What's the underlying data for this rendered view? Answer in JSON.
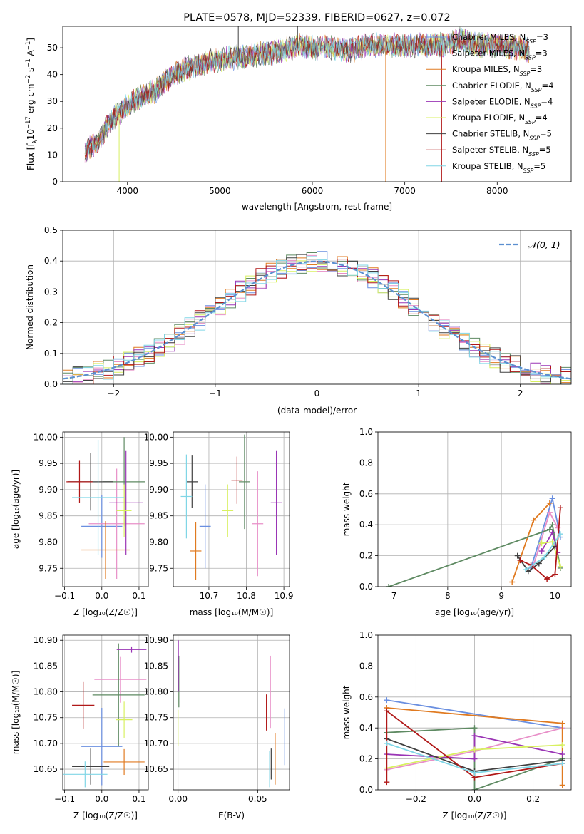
{
  "colors": {
    "Chabrier MILES": "#6a8fe0",
    "Salpeter MILES": "#e88fc8",
    "Kroupa MILES": "#e07a20",
    "Chabrier ELODIE": "#5e8a62",
    "Salpeter ELODIE": "#9a35b5",
    "Kroupa ELODIE": "#d8f060",
    "Chabrier STELIB": "#404040",
    "Salpeter STELIB": "#b01818",
    "Kroupa STELIB": "#80d6e6",
    "gauss": "#5b8fd0"
  },
  "chart_data": [
    {
      "id": "spectrum",
      "type": "line",
      "title": "PLATE=0578, MJD=52339, FIBERID=0627, z=0.072",
      "xlabel": "wavelength [Angstrom, rest frame]",
      "ylabel_parts": [
        "Flux [f",
        "λ",
        "10",
        "−17",
        " erg cm",
        "−2",
        " s",
        "−1",
        " A",
        "−1",
        "]"
      ],
      "xlim": [
        3300,
        8800
      ],
      "ylim": [
        0,
        58
      ],
      "xticks": [
        4000,
        5000,
        6000,
        7000,
        8000
      ],
      "yticks": [
        0,
        10,
        20,
        30,
        40,
        50
      ],
      "grid": false,
      "legend_position": "top-right",
      "continuum": [
        [
          3540,
          11
        ],
        [
          3700,
          16
        ],
        [
          3800,
          22
        ],
        [
          3950,
          27
        ],
        [
          4100,
          31
        ],
        [
          4300,
          34
        ],
        [
          4500,
          40
        ],
        [
          4700,
          43
        ],
        [
          4900,
          45
        ],
        [
          5100,
          46
        ],
        [
          5300,
          47
        ],
        [
          5500,
          48
        ],
        [
          5700,
          49
        ],
        [
          5850,
          51
        ],
        [
          6000,
          50
        ],
        [
          6200,
          50
        ],
        [
          6400,
          49
        ],
        [
          6600,
          51
        ],
        [
          6800,
          51
        ],
        [
          7000,
          51
        ],
        [
          7200,
          51
        ],
        [
          7400,
          51
        ],
        [
          7600,
          53
        ],
        [
          7800,
          51
        ],
        [
          8000,
          51
        ],
        [
          8200,
          50
        ],
        [
          8350,
          49
        ]
      ],
      "spikes": [
        [
          5199,
          58
        ],
        [
          5840,
          58
        ],
        [
          6794,
          0
        ],
        [
          7399,
          0
        ],
        [
          3910,
          0
        ]
      ],
      "series": [
        {
          "name": "Chabrier MILES",
          "nssp": "3"
        },
        {
          "name": "Salpeter MILES",
          "nssp": "3"
        },
        {
          "name": "Kroupa MILES",
          "nssp": "3"
        },
        {
          "name": "Chabrier ELODIE",
          "nssp": "4"
        },
        {
          "name": "Salpeter ELODIE",
          "nssp": "4"
        },
        {
          "name": "Kroupa ELODIE",
          "nssp": "4"
        },
        {
          "name": "Chabrier STELIB",
          "nssp": "5"
        },
        {
          "name": "Salpeter STELIB",
          "nssp": "5"
        },
        {
          "name": "Kroupa STELIB",
          "nssp": "5"
        }
      ],
      "legend_prefix": ", N",
      "legend_sub": "SSP",
      "legend_eq": "="
    },
    {
      "id": "residuals",
      "type": "line",
      "xlabel": "(data-model)/error",
      "ylabel": "Normed distribution",
      "xlim": [
        -2.5,
        2.5
      ],
      "ylim": [
        0,
        0.5
      ],
      "xticks": [
        -2,
        -1,
        0,
        1,
        2
      ],
      "yticks": [
        0.0,
        0.1,
        0.2,
        0.3,
        0.4,
        0.5
      ],
      "grid": true,
      "legend_position": "top-right",
      "legend": "𝒩(0, 1)",
      "bin_width": 0.1
    },
    {
      "id": "age_vs_Z",
      "type": "scatter",
      "xlabel": "Z [log₁₀(Z/Z☉)]",
      "ylabel": "age  [log₁₀(age/yr)]",
      "xlim": [
        -0.105,
        0.125
      ],
      "ylim": [
        9.715,
        10.01
      ],
      "xticks": [
        -0.1,
        0.0,
        0.1
      ],
      "xticklabels": [
        "−0.1",
        "0.0",
        "0.1"
      ],
      "yticks": [
        9.75,
        9.8,
        9.85,
        9.9,
        9.95,
        10.0
      ],
      "grid": true,
      "points": [
        {
          "series": "Chabrier MILES",
          "x": 0.0,
          "xerr": 0.055,
          "y": 9.83,
          "yerr": 0.06
        },
        {
          "series": "Salpeter MILES",
          "x": 0.04,
          "xerr": 0.075,
          "y": 9.835,
          "yerr": 0.105
        },
        {
          "series": "Kroupa MILES",
          "x": 0.01,
          "xerr": 0.065,
          "y": 9.785,
          "yerr": 0.055
        },
        {
          "series": "Chabrier ELODIE",
          "x": 0.06,
          "xerr": 0.057,
          "y": 9.915,
          "yerr": 0.085
        },
        {
          "series": "Salpeter ELODIE",
          "x": 0.065,
          "xerr": 0.045,
          "y": 9.875,
          "yerr": 0.1
        },
        {
          "series": "Kroupa ELODIE",
          "x": 0.06,
          "xerr": 0.02,
          "y": 9.86,
          "yerr": 0.05
        },
        {
          "series": "Chabrier STELIB",
          "x": -0.03,
          "xerr": 0.06,
          "y": 9.915,
          "yerr": 0.055
        },
        {
          "series": "Salpeter STELIB",
          "x": -0.06,
          "xerr": 0.035,
          "y": 9.915,
          "yerr": 0.04
        },
        {
          "series": "Kroupa STELIB",
          "x": -0.01,
          "xerr": 0.07,
          "y": 9.885,
          "yerr": 0.11
        }
      ]
    },
    {
      "id": "age_vs_mass",
      "type": "scatter",
      "xlabel": "mass [log₁₀(M/M☉)]",
      "xlim": [
        10.605,
        10.915
      ],
      "ylim": [
        9.715,
        10.01
      ],
      "xticks": [
        10.7,
        10.8,
        10.9
      ],
      "yticks": [
        9.75,
        9.8,
        9.85,
        9.9,
        9.95,
        10.0
      ],
      "grid": true,
      "points": [
        {
          "series": "Chabrier MILES",
          "x": 10.69,
          "xerr": 0.015,
          "y": 9.83,
          "yerr": 0.08
        },
        {
          "series": "Salpeter MILES",
          "x": 10.83,
          "xerr": 0.015,
          "y": 9.835,
          "yerr": 0.1
        },
        {
          "series": "Kroupa MILES",
          "x": 10.665,
          "xerr": 0.015,
          "y": 9.783,
          "yerr": 0.055
        },
        {
          "series": "Chabrier ELODIE",
          "x": 10.795,
          "xerr": 0.015,
          "y": 9.915,
          "yerr": 0.09
        },
        {
          "series": "Salpeter ELODIE",
          "x": 10.88,
          "xerr": 0.015,
          "y": 9.875,
          "yerr": 0.1
        },
        {
          "series": "Kroupa ELODIE",
          "x": 10.75,
          "xerr": 0.015,
          "y": 9.86,
          "yerr": 0.05
        },
        {
          "series": "Chabrier STELIB",
          "x": 10.655,
          "xerr": 0.015,
          "y": 9.915,
          "yerr": 0.05
        },
        {
          "series": "Salpeter STELIB",
          "x": 10.775,
          "xerr": 0.015,
          "y": 9.918,
          "yerr": 0.045
        },
        {
          "series": "Kroupa STELIB",
          "x": 10.64,
          "xerr": 0.015,
          "y": 9.887,
          "yerr": 0.08
        }
      ]
    },
    {
      "id": "massweight_vs_age",
      "type": "line",
      "xlabel": "age  [log₁₀(age/yr)]",
      "ylabel": "mass weight",
      "xlim": [
        6.7,
        10.3
      ],
      "ylim": [
        0,
        1.0
      ],
      "xticks": [
        7,
        8,
        9,
        10
      ],
      "yticks": [
        0.0,
        0.2,
        0.4,
        0.6,
        0.8,
        1.0
      ],
      "grid": true,
      "series": [
        {
          "name": "Chabrier MILES",
          "points": [
            [
              9.55,
              0.12
            ],
            [
              9.95,
              0.57
            ],
            [
              10.1,
              0.32
            ]
          ]
        },
        {
          "name": "Salpeter MILES",
          "points": [
            [
              9.6,
              0.14
            ],
            [
              9.9,
              0.48
            ],
            [
              10.05,
              0.38
            ]
          ]
        },
        {
          "name": "Kroupa MILES",
          "points": [
            [
              9.2,
              0.03
            ],
            [
              9.6,
              0.43
            ],
            [
              9.9,
              0.54
            ]
          ]
        },
        {
          "name": "Chabrier ELODIE",
          "points": [
            [
              6.9,
              0.0
            ],
            [
              9.9,
              0.37
            ],
            [
              9.95,
              0.4
            ],
            [
              10.1,
              0.12
            ]
          ]
        },
        {
          "name": "Salpeter ELODIE",
          "points": [
            [
              9.75,
              0.23
            ],
            [
              9.95,
              0.35
            ],
            [
              10.05,
              0.22
            ]
          ]
        },
        {
          "name": "Kroupa ELODIE",
          "points": [
            [
              9.75,
              0.28
            ],
            [
              9.95,
              0.29
            ],
            [
              10.1,
              0.13
            ]
          ]
        },
        {
          "name": "Chabrier STELIB",
          "points": [
            [
              9.3,
              0.2
            ],
            [
              9.5,
              0.1
            ],
            [
              9.7,
              0.15
            ],
            [
              10.0,
              0.26
            ]
          ]
        },
        {
          "name": "Salpeter STELIB",
          "points": [
            [
              9.35,
              0.17
            ],
            [
              9.55,
              0.14
            ],
            [
              9.85,
              0.05
            ],
            [
              10.0,
              0.08
            ],
            [
              10.1,
              0.51
            ]
          ]
        },
        {
          "name": "Kroupa STELIB",
          "points": [
            [
              9.45,
              0.11
            ],
            [
              9.8,
              0.19
            ],
            [
              10.1,
              0.34
            ]
          ]
        }
      ]
    },
    {
      "id": "mass_vs_Z",
      "type": "scatter",
      "xlabel": "Z [log₁₀(Z/Z☉)]",
      "ylabel": "mass [log₁₀(M/M☉)]",
      "xlim": [
        -0.105,
        0.125
      ],
      "ylim": [
        10.61,
        10.91
      ],
      "xticks": [
        -0.1,
        0.0,
        0.1
      ],
      "xticklabels": [
        "−0.1",
        "0.0",
        "0.1"
      ],
      "yticks": [
        10.65,
        10.7,
        10.75,
        10.8,
        10.85,
        10.9
      ],
      "grid": true,
      "points": [
        {
          "series": "Chabrier MILES",
          "x": 0.0,
          "xerr": 0.055,
          "y": 10.694,
          "yerr": 0.075
        },
        {
          "series": "Salpeter MILES",
          "x": 0.05,
          "xerr": 0.07,
          "y": 10.824,
          "yerr": 0.045
        },
        {
          "series": "Kroupa MILES",
          "x": 0.06,
          "xerr": 0.055,
          "y": 10.664,
          "yerr": 0.025
        },
        {
          "series": "Chabrier ELODIE",
          "x": 0.045,
          "xerr": 0.07,
          "y": 10.794,
          "yerr": 0.1
        },
        {
          "series": "Salpeter ELODIE",
          "x": 0.08,
          "xerr": 0.04,
          "y": 10.882,
          "yerr": 0.006
        },
        {
          "series": "Kroupa ELODIE",
          "x": 0.06,
          "xerr": 0.022,
          "y": 10.746,
          "yerr": 0.035
        },
        {
          "series": "Chabrier STELIB",
          "x": -0.03,
          "xerr": 0.05,
          "y": 10.655,
          "yerr": 0.035
        },
        {
          "series": "Salpeter STELIB",
          "x": -0.05,
          "xerr": 0.03,
          "y": 10.774,
          "yerr": 0.045
        },
        {
          "series": "Kroupa STELIB",
          "x": -0.045,
          "xerr": 0.06,
          "y": 10.64,
          "yerr": 0.025
        }
      ]
    },
    {
      "id": "mass_vs_ebv",
      "type": "scatter",
      "xlabel": "E(B-V)",
      "xlim": [
        -0.003,
        0.07
      ],
      "ylim": [
        10.61,
        10.91
      ],
      "xticks": [
        0.0,
        0.05
      ],
      "xticklabels": [
        "0.00",
        "0.05"
      ],
      "yticks": [
        10.65,
        10.7,
        10.75,
        10.8,
        10.85,
        10.9
      ],
      "grid": true,
      "points": [
        {
          "series": "Chabrier MILES",
          "x": 0.067,
          "y": 10.713,
          "yerr": 0.055
        },
        {
          "series": "Salpeter MILES",
          "x": 0.058,
          "y": 10.8,
          "yerr": 0.07
        },
        {
          "series": "Kroupa MILES",
          "x": 0.061,
          "y": 10.67,
          "yerr": 0.05
        },
        {
          "series": "Chabrier ELODIE",
          "x": 0.0005,
          "y": 10.82,
          "yerr": 0.05
        },
        {
          "series": "Salpeter ELODIE",
          "x": 0.0002,
          "y": 10.85,
          "yerr": 0.05
        },
        {
          "series": "Kroupa ELODIE",
          "x": 0.0,
          "y": 10.73,
          "yerr": 0.035
        },
        {
          "series": "Chabrier STELIB",
          "x": 0.0585,
          "y": 10.66,
          "yerr": 0.03
        },
        {
          "series": "Salpeter STELIB",
          "x": 0.0555,
          "y": 10.76,
          "yerr": 0.035
        },
        {
          "series": "Kroupa STELIB",
          "x": 0.0575,
          "y": 10.65,
          "yerr": 0.035
        }
      ]
    },
    {
      "id": "massweight_vs_Z",
      "type": "line",
      "xlabel": "Z [log₁₀(Z/Z☉)]",
      "ylabel": "mass weight",
      "xlim": [
        -0.33,
        0.33
      ],
      "ylim": [
        0,
        1.0
      ],
      "xticks": [
        -0.2,
        0.0,
        0.2
      ],
      "xticklabels": [
        "−0.2",
        "0.0",
        "0.2"
      ],
      "yticks": [
        0.0,
        0.2,
        0.4,
        0.6,
        0.8,
        1.0
      ],
      "grid": true,
      "series": [
        {
          "name": "Chabrier MILES",
          "points": [
            [
              -0.3,
              0.58
            ],
            [
              0.3,
              0.4
            ]
          ]
        },
        {
          "name": "Salpeter MILES",
          "points": [
            [
              -0.3,
              0.13
            ],
            [
              0.0,
              0.25
            ],
            [
              0.3,
              0.4
            ]
          ]
        },
        {
          "name": "Kroupa MILES",
          "points": [
            [
              -0.3,
              0.53
            ],
            [
              0.3,
              0.43
            ],
            [
              0.3,
              0.03
            ]
          ]
        },
        {
          "name": "Chabrier ELODIE",
          "points": [
            [
              -0.3,
              0.37
            ],
            [
              0.0,
              0.4
            ],
            [
              0.0,
              0.0
            ],
            [
              0.3,
              0.2
            ]
          ]
        },
        {
          "name": "Salpeter ELODIE",
          "points": [
            [
              -0.3,
              0.23
            ],
            [
              0.0,
              0.2
            ],
            [
              0.0,
              0.35
            ],
            [
              0.3,
              0.23
            ]
          ]
        },
        {
          "name": "Kroupa ELODIE",
          "points": [
            [
              -0.3,
              0.14
            ],
            [
              0.0,
              0.26
            ],
            [
              0.3,
              0.29
            ]
          ]
        },
        {
          "name": "Chabrier STELIB",
          "points": [
            [
              -0.3,
              0.33
            ],
            [
              0.0,
              0.12
            ],
            [
              0.3,
              0.19
            ]
          ]
        },
        {
          "name": "Salpeter STELIB",
          "points": [
            [
              -0.3,
              0.05
            ],
            [
              -0.3,
              0.51
            ],
            [
              0.0,
              0.08
            ],
            [
              0.3,
              0.17
            ]
          ]
        },
        {
          "name": "Kroupa STELIB",
          "points": [
            [
              -0.3,
              0.3
            ],
            [
              0.0,
              0.11
            ],
            [
              0.3,
              0.17
            ]
          ]
        }
      ]
    }
  ]
}
